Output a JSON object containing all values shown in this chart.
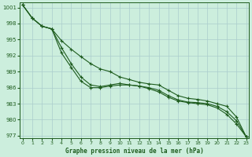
{
  "x": [
    0,
    1,
    2,
    3,
    4,
    5,
    6,
    7,
    8,
    9,
    10,
    11,
    12,
    13,
    14,
    15,
    16,
    17,
    18,
    19,
    20,
    21,
    22,
    23
  ],
  "line_top": [
    1001.5,
    999.0,
    997.5,
    997.0,
    994.8,
    993.2,
    991.8,
    990.5,
    989.5,
    989.0,
    988.0,
    987.5,
    987.0,
    986.7,
    986.5,
    985.5,
    984.5,
    984.0,
    983.8,
    983.5,
    983.0,
    982.5,
    980.5,
    976.8
  ],
  "line_mid": [
    1001.5,
    999.0,
    997.5,
    997.0,
    993.5,
    990.5,
    988.0,
    986.5,
    986.2,
    986.5,
    986.8,
    986.5,
    986.3,
    986.0,
    985.5,
    984.5,
    983.7,
    983.3,
    983.2,
    983.0,
    982.5,
    981.5,
    979.8,
    976.8
  ],
  "line_bot": [
    1001.5,
    999.0,
    997.5,
    997.0,
    992.5,
    989.8,
    987.2,
    986.0,
    986.0,
    986.3,
    986.5,
    986.5,
    986.3,
    985.8,
    985.2,
    984.2,
    983.5,
    983.2,
    983.0,
    982.8,
    982.2,
    981.0,
    979.2,
    976.8
  ],
  "ylim_min": 976.5,
  "ylim_max": 1002.0,
  "yticks": [
    977,
    980,
    983,
    986,
    989,
    992,
    995,
    998,
    1001
  ],
  "xticks": [
    0,
    1,
    2,
    3,
    4,
    5,
    6,
    7,
    8,
    9,
    10,
    11,
    12,
    13,
    14,
    15,
    16,
    17,
    18,
    19,
    20,
    21,
    22,
    23
  ],
  "xlabel": "Graphe pression niveau de la mer (hPa)",
  "line_color": "#1e5c1e",
  "bg_color": "#cceedd",
  "grid_color": "#aacccc",
  "marker": "+",
  "markersize": 3.5,
  "linewidth": 0.8
}
